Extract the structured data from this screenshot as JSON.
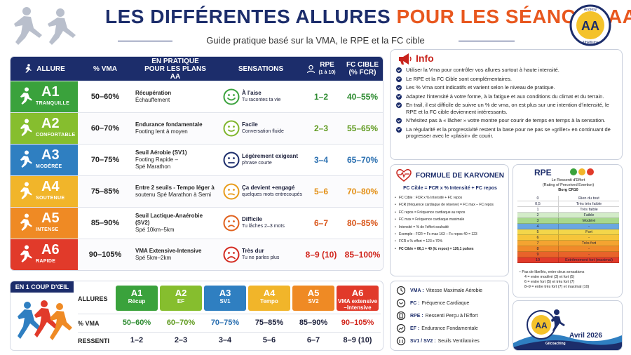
{
  "header": {
    "title_part1": "LES DIFFÉRENTES ALLURES",
    "title_part2": "POUR LES SÉANCES AA",
    "subtitle": "Guide pratique basé sur la VMA, le RPE et la FC cible",
    "logo_text_top": "Andrésy",
    "logo_text_bottom": "Athlétisme",
    "logo_letters": "AA"
  },
  "table": {
    "headers": {
      "allure": "ALLURE",
      "vma": "% VMA",
      "pratique": "EN PRATIQUE POUR LES PLANS AA",
      "sensations": "SENSATIONS",
      "rpe": "RPE",
      "rpe_sub": "(1 à 10)",
      "fc": "FC CIBLE",
      "fc_sub": "(% FCR)"
    },
    "rows": [
      {
        "code": "A1",
        "label": "TRANQUILLE",
        "color": "#3aa23c",
        "vma": "50–60%",
        "pratique_1": "Récupération",
        "pratique_2": "Échauffement",
        "pratique_3": "",
        "sens_title": "À l'aise",
        "sens_desc": "Tu racontes ta vie",
        "face_color": "#3aa23c",
        "rpe": "1–2",
        "fc": "40–55%",
        "text_color": "#2d8b30"
      },
      {
        "code": "A2",
        "label": "CONFORTABLE",
        "color": "#86be2e",
        "vma": "60–70%",
        "pratique_1": "Endurance fondamentale",
        "pratique_2": "Footing lent à moyen",
        "pratique_3": "",
        "sens_title": "Facile",
        "sens_desc": "Conversation fluide",
        "face_color": "#7fb52c",
        "rpe": "2–3",
        "fc": "55–65%",
        "text_color": "#5f9a1f"
      },
      {
        "code": "A3",
        "label": "MODÉRÉE",
        "color": "#2f7fc1",
        "vma": "70–75%",
        "pratique_1": "Seuil Aérobie (SV1)",
        "pratique_2": "Footing Rapide –",
        "pratique_3": "Spé Marathon",
        "sens_title": "Légèrement exigeant",
        "sens_desc": "phrase courte",
        "face_color": "#1c2d6b",
        "rpe": "3–4",
        "fc": "65–70%",
        "text_color": "#2a6fb0"
      },
      {
        "code": "A4",
        "label": "SOUTENUE",
        "color": "#f1b52a",
        "vma": "75–85%",
        "pratique_1": "Entre 2 seuils - Tempo léger à",
        "pratique_2": "soutenu  Spé Marathon à Semi",
        "pratique_3": "",
        "sens_title": "Ça devient +engagé",
        "sens_desc": "quelques mots entrecoupés",
        "face_color": "#e89b1a",
        "rpe": "5–6",
        "fc": "70–80%",
        "text_color": "#e38f14"
      },
      {
        "code": "A5",
        "label": "INTENSE",
        "color": "#ef8a24",
        "vma": "85–90%",
        "pratique_1": "Seuil Lactique-Anaérobie (SV2)",
        "pratique_2": "Spé 10km–5km",
        "pratique_3": "",
        "sens_title": "Difficile",
        "sens_desc": "Tu lâches 2–3 mots",
        "face_color": "#e0601c",
        "rpe": "6–7",
        "fc": "80–85%",
        "text_color": "#d9561a"
      },
      {
        "code": "A6",
        "label": "RAPIDE",
        "color": "#e13a2a",
        "vma": "90–105%",
        "pratique_1": "VMA Extensive-Intensive",
        "pratique_2": "Spé 5km–2km",
        "pratique_3": "",
        "sens_title": "Très dur",
        "sens_desc": "Tu ne parles plus",
        "face_color": "#d32a20",
        "rpe": "8–9 (10)",
        "fc": "85–100%",
        "text_color": "#d1251b"
      }
    ]
  },
  "recap": {
    "tag": "EN 1 COUP D'ŒIL",
    "row_labels": {
      "allures": "ALLURES",
      "vma": "% VMA",
      "ressenti": "RESSENTI"
    },
    "cols": [
      {
        "code": "A1",
        "name": "Récup",
        "color": "#3aa23c",
        "vma": "50–60%",
        "ressenti": "1–2",
        "vma_color": "#2d8b30"
      },
      {
        "code": "A2",
        "name": "EF",
        "color": "#86be2e",
        "vma": "60–70%",
        "ressenti": "2–3",
        "vma_color": "#5f9a1f"
      },
      {
        "code": "A3",
        "name": "SV1",
        "color": "#2f7fc1",
        "vma": "70–75%",
        "ressenti": "3–4",
        "vma_color": "#2a6fb0"
      },
      {
        "code": "A4",
        "name": "Tempo",
        "color": "#f1b52a",
        "vma": "75–85%",
        "ressenti": "5–6",
        "vma_color": "#1b1f3a"
      },
      {
        "code": "A5",
        "name": "SV2",
        "color": "#ef8a24",
        "vma": "85–90%",
        "ressenti": "6–7",
        "vma_color": "#1b1f3a"
      },
      {
        "code": "A6",
        "name": "VMA extensive –Intensive",
        "color": "#e13a2a",
        "vma": "90–105%",
        "ressenti": "8–9 (10)",
        "vma_color": "#d1251b"
      }
    ]
  },
  "info": {
    "title": "Info",
    "items": [
      "Utiliser la Vma pour contrôler vos allures surtout à haute intensité.",
      "Le RPE et la FC Cible sont complémentaires.",
      "Les % Vma sont indicatifs et varient selon le niveau de pratique.",
      "Adaptez l'intensité à votre forme, à la fatigue et aux conditions du climat et du terrain.",
      "En trail, il est difficile de suivre un % de vma, on est plus sur une intention d'intensité, le RPE et la FC cible deviennent intéressants.",
      "N'hésitez pas à « lâcher » votre montre pour courir de temps en temps à la sensation.",
      "La régularité et la progressivité restent la base pour ne pas se «griller» en continuant de progresser avec le «plaisir» de courir."
    ]
  },
  "karvonen": {
    "title": "FORMULE DE KARVONEN",
    "formula": "FC Cible = FCR x % Intensité + FC repos",
    "items": [
      "FC Cible : FCR x % Intensité + FC repos",
      "FCR (fréquence cardiaque de réserve) = FC max – FC repos",
      "FC repos = Fréquence cardiaque au repos",
      "FC max = Fréquence cardiaque maximale",
      "Intensité = % de l'effort souhaité",
      "Exemple : FCR = Fc max 163 – Fc repos 40 = 123",
      "FCR x % effort = 123 x 70%",
      "FC Cible = 86,1 + 40 (fc repos) = 126,1 pulses"
    ]
  },
  "rpe_scale": {
    "title": "RPE",
    "sub1": "Le Ressenti d'Effort",
    "sub2": "(Rating of Perceived Exertion)",
    "sub3": "Borg CR10",
    "rows": [
      {
        "n": "0",
        "t": "Rien du tout",
        "color": "#ffffff"
      },
      {
        "n": "0,5",
        "t": "Très très faible",
        "color": "#ffffff"
      },
      {
        "n": "1",
        "t": "Très faible",
        "color": "#ffffff"
      },
      {
        "n": "2",
        "t": "Faible",
        "color": "#d3ecc8"
      },
      {
        "n": "3",
        "t": "Modéré",
        "color": "#a8d88b"
      },
      {
        "n": "4",
        "t": "-",
        "color": "#6aa7e0"
      },
      {
        "n": "5",
        "t": "Fort",
        "color": "#f3d64a"
      },
      {
        "n": "6",
        "t": "-",
        "color": "#f6c53a"
      },
      {
        "n": "7",
        "t": "Très fort",
        "color": "#f4a431"
      },
      {
        "n": "8",
        "t": "-",
        "color": "#f08a2a"
      },
      {
        "n": "9",
        "t": "-",
        "color": "#e8632a"
      },
      {
        "n": "10",
        "t": "Extrêmement fort (maximal)",
        "color": "#e13a2a"
      }
    ],
    "note_intro": "– Pas de libellés, entre deux sensations",
    "note_1": "4 = entre modéré (3) et fort (5)",
    "note_2": "6 = entre fort (5) et très fort (7)",
    "note_3": "8–9 = entre très fort (7) et maximal (10)"
  },
  "glossary": [
    {
      "abbr": "VMA :",
      "desc": "Vitesse Maximale Aérobie"
    },
    {
      "abbr": "FC :",
      "desc": "Fréquence Cardiaque"
    },
    {
      "abbr": "RPE :",
      "desc": "Ressenti Perçu à l'Effort"
    },
    {
      "abbr": "EF :",
      "desc": "Endurance Fondamentale"
    },
    {
      "abbr": "SV1 / SV2 :",
      "desc": "Seuils Ventilatoires"
    }
  ],
  "corner": {
    "date": "Avril 2026",
    "name": "Gilcoaching"
  }
}
